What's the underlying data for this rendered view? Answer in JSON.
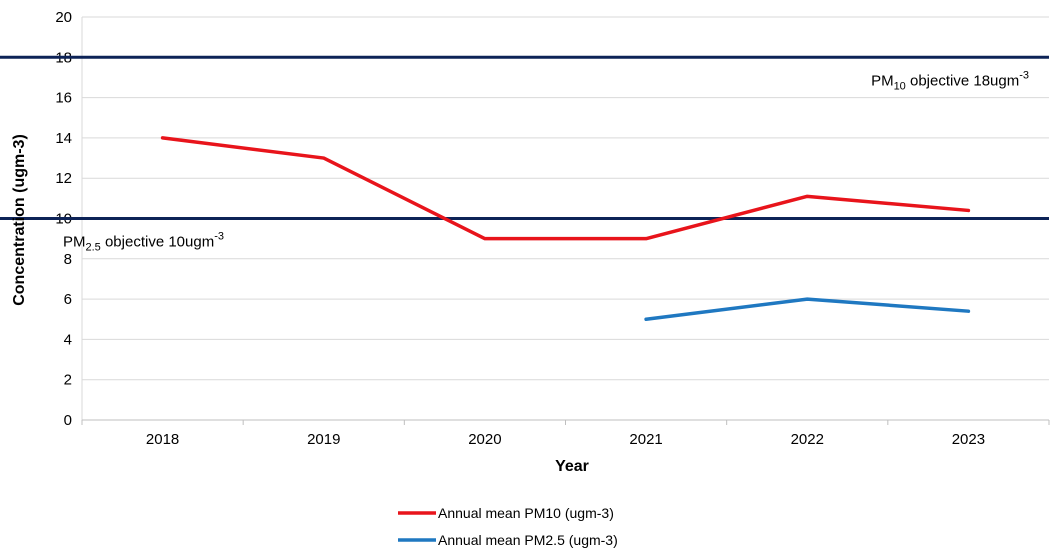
{
  "chart_data": {
    "type": "line",
    "title": "",
    "xlabel": "Year",
    "ylabel": "Concentration (ugm-3)",
    "categories": [
      "2018",
      "2019",
      "2020",
      "2021",
      "2022",
      "2023"
    ],
    "y_ticks": [
      "0",
      "2",
      "4",
      "6",
      "8",
      "10",
      "12",
      "14",
      "16",
      "18",
      "20"
    ],
    "ylim": [
      0,
      20
    ],
    "grid": true,
    "legend_position": "bottom",
    "series": [
      {
        "name": "Annual mean PM10 (ugm-3)",
        "color": "#e8141b",
        "values": [
          14,
          13,
          9,
          9,
          11.1,
          10.4
        ]
      },
      {
        "name": "Annual mean PM2.5 (ugm-3)",
        "color": "#1f78c1",
        "values": [
          null,
          null,
          null,
          5,
          6,
          5.4
        ]
      }
    ],
    "reference_lines": [
      {
        "value": 18,
        "color": "#0d2357",
        "label": {
          "prefix": "PM",
          "sub": "10",
          "mid": " objective 18ugm",
          "sup": "-3"
        }
      },
      {
        "value": 10,
        "color": "#0d2357",
        "label": {
          "prefix": "PM",
          "sub": "2.5",
          "mid": " objective 10ugm",
          "sup": "-3"
        }
      }
    ]
  }
}
